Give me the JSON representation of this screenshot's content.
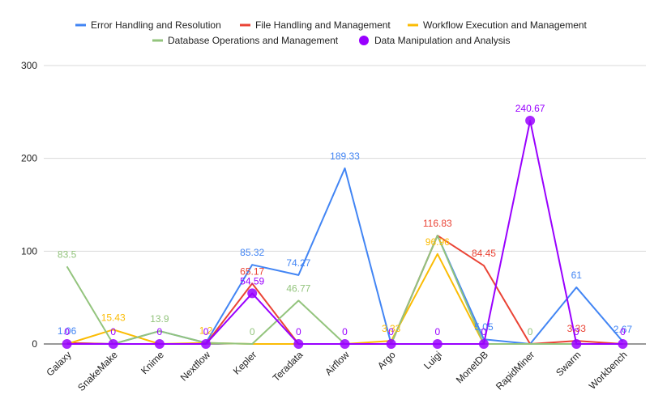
{
  "chart_data": {
    "type": "line",
    "title": "",
    "xlabel": "",
    "ylabel": "",
    "ylim": [
      0,
      300
    ],
    "yticks": [
      0,
      100,
      200,
      300
    ],
    "grid": true,
    "legend_position": "top",
    "categories": [
      "Galaxy",
      "SnakeMake",
      "Knime",
      "Nextflow",
      "Kepler",
      "Teradata",
      "Airflow",
      "Argo",
      "Luigi",
      "MonetDB",
      "RapidMiner",
      "Swarm",
      "Workbench"
    ],
    "series": [
      {
        "name": "Error Handling and Resolution",
        "color": "#4285f4",
        "values": [
          1.06,
          0,
          13.9,
          1.2,
          85.32,
          74.27,
          189.33,
          0,
          116.83,
          5.05,
          0,
          61,
          2.67
        ],
        "labels": [
          "1.06",
          "",
          "",
          "",
          "85.32",
          "74.27",
          "189.33",
          "",
          "",
          "5.05",
          "",
          "61",
          "2.67"
        ]
      },
      {
        "name": "File Handling and Management",
        "color": "#ea4335",
        "values": [
          1.06,
          0,
          0,
          0,
          65.17,
          0,
          0,
          0,
          116.83,
          84.45,
          0,
          3.33,
          0
        ],
        "labels": [
          "",
          "",
          "",
          "",
          "65.17",
          "",
          "",
          "",
          "116.83",
          "84.45",
          "",
          "3.33",
          ""
        ]
      },
      {
        "name": "Workflow Execution and Management",
        "color": "#fbbc04",
        "values": [
          0,
          15.43,
          0,
          1.2,
          0,
          0,
          0,
          3.33,
          96.96,
          0,
          0,
          0,
          0
        ],
        "labels": [
          "",
          "15.43",
          "",
          "1.2",
          "",
          "",
          "",
          "3.33",
          "96.96",
          "",
          "",
          "",
          ""
        ]
      },
      {
        "name": "Database Operations and Management",
        "color": "#93c47d",
        "values": [
          83.5,
          0,
          13.9,
          1.2,
          0,
          46.77,
          0,
          0,
          116.83,
          0,
          0,
          0,
          0
        ],
        "labels": [
          "83.5",
          "",
          "13.9",
          "",
          "0",
          "46.77",
          "",
          "",
          "",
          "",
          "0",
          "",
          ""
        ]
      },
      {
        "name": "Data Manipulation and Analysis",
        "color": "#9900ff",
        "values": [
          0,
          0,
          0,
          0,
          54.59,
          0,
          0,
          0,
          0,
          0,
          240.67,
          0,
          0
        ],
        "labels": [
          "0",
          "0",
          "0",
          "0",
          "54.59",
          "0",
          "0",
          "0",
          "0",
          "0",
          "240.67",
          "0",
          "0"
        ]
      }
    ]
  }
}
